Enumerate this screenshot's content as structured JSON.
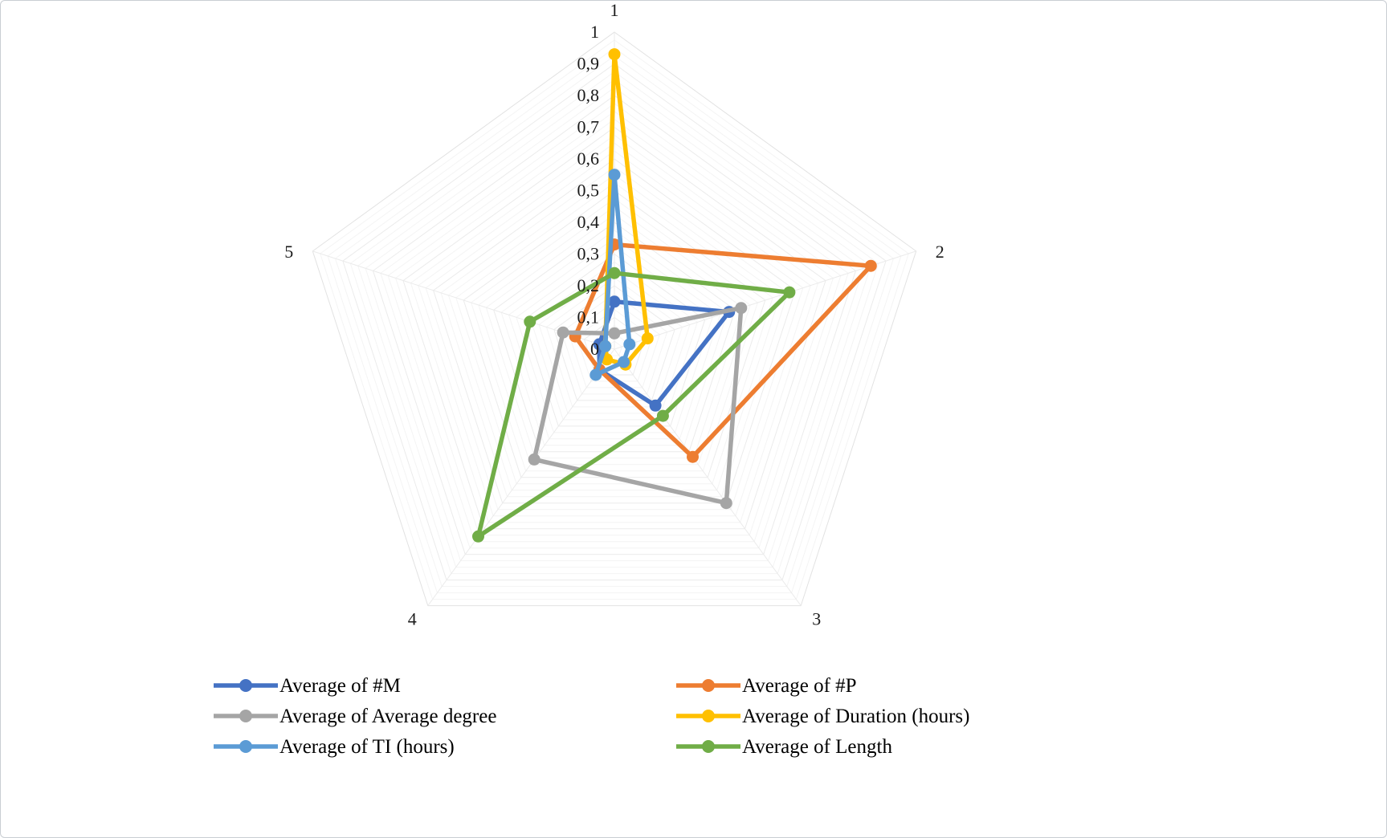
{
  "chart_data": {
    "type": "radar",
    "title": "",
    "categories": [
      "1",
      "2",
      "3",
      "4",
      "5"
    ],
    "radial_ticks": [
      "0",
      "0,1",
      "0,2",
      "0,3",
      "0,4",
      "0,5",
      "0,6",
      "0,7",
      "0,8",
      "0,9",
      "1"
    ],
    "rmin": 0,
    "rmax": 1,
    "minor_ring_step": 0.025,
    "major_ring_step": 0.1,
    "grid": true,
    "legend_position": "bottom",
    "series": [
      {
        "name": "Average of #M",
        "color": "#4472C4",
        "values": [
          0.15,
          0.38,
          0.22,
          0.08,
          0.05
        ]
      },
      {
        "name": "Average of #P",
        "color": "#ED7D31",
        "values": [
          0.33,
          0.85,
          0.42,
          0.08,
          0.13
        ]
      },
      {
        "name": "Average of Average degree",
        "color": "#A5A5A5",
        "values": [
          0.05,
          0.42,
          0.6,
          0.43,
          0.17
        ]
      },
      {
        "name": "Average of Duration (hours)",
        "color": "#FFC000",
        "values": [
          0.93,
          0.11,
          0.06,
          0.04,
          0.03
        ]
      },
      {
        "name": "Average of TI (hours)",
        "color": "#5B9BD5",
        "values": [
          0.55,
          0.05,
          0.05,
          0.1,
          0.03
        ]
      },
      {
        "name": "Average of Length",
        "color": "#70AD47",
        "values": [
          0.24,
          0.58,
          0.26,
          0.73,
          0.28
        ]
      }
    ],
    "style": {
      "minor_grid_color": "#f4f4f4",
      "major_grid_color": "#ebebeb",
      "outer_grid_color": "#e2e2e2",
      "spoke_color": "#ebebeb",
      "line_width": 5.5,
      "marker_radius": 7.5
    }
  }
}
